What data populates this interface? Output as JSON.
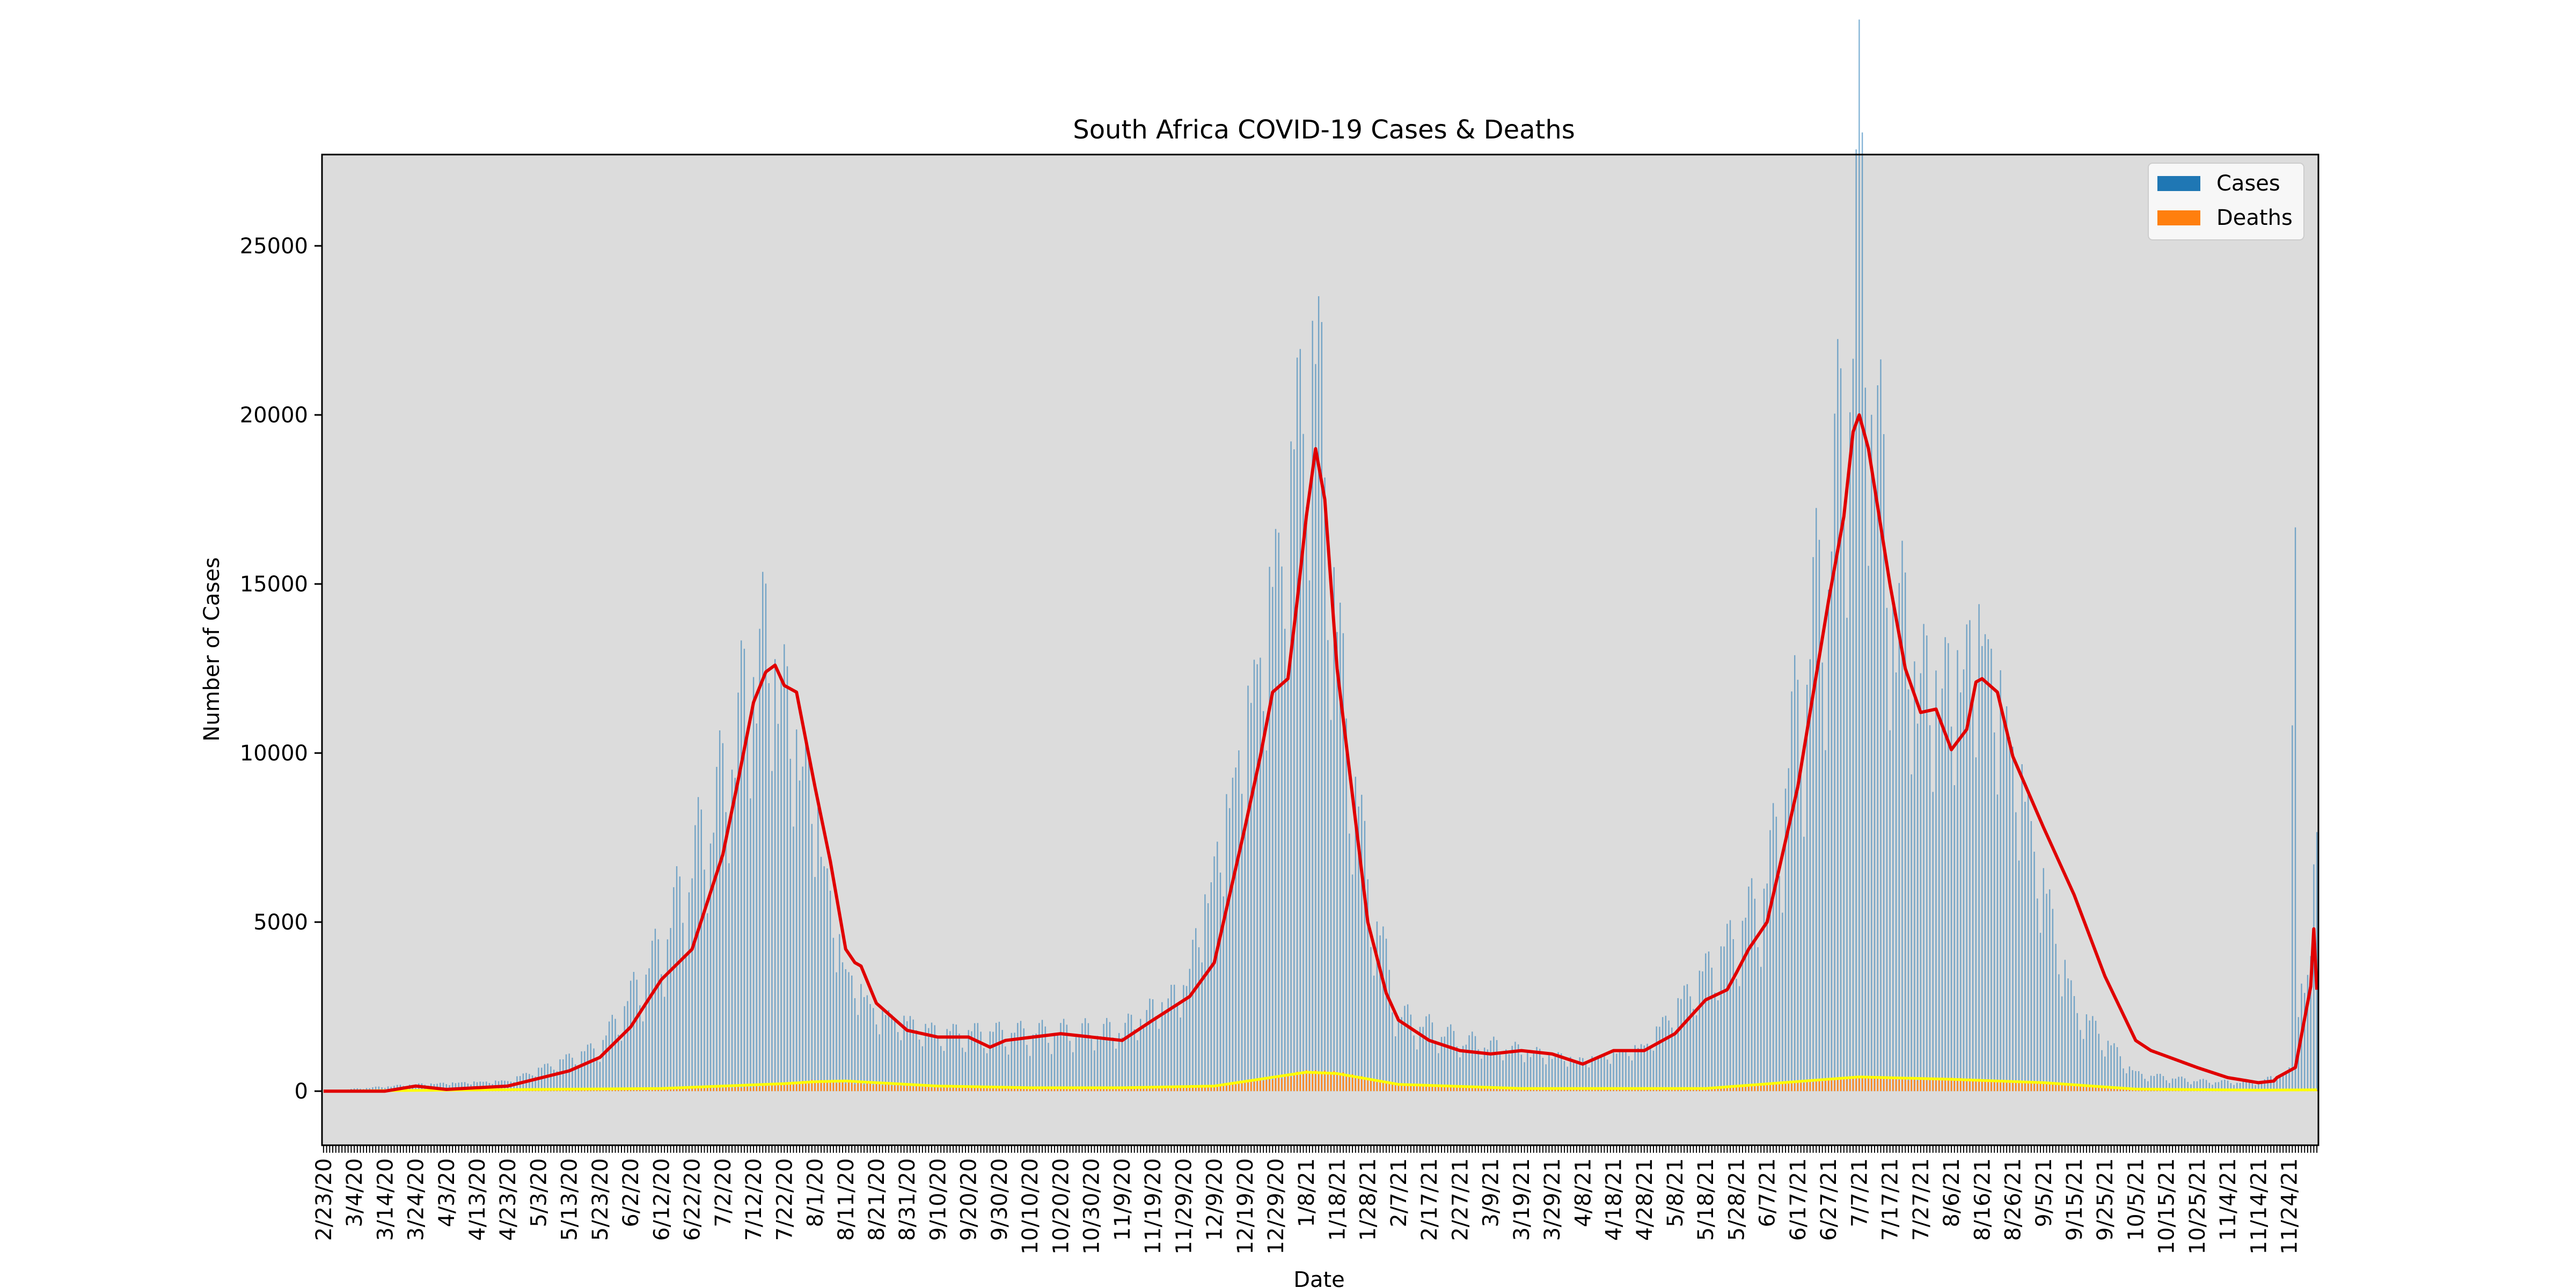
{
  "chart_data": {
    "type": "bar",
    "title": "South Africa COVID-19 Cases & Deaths",
    "xlabel": "Date",
    "ylabel": "Number of Cases",
    "ylim": [
      -1600,
      27700
    ],
    "y_ticks": [
      0,
      5000,
      10000,
      15000,
      20000,
      25000
    ],
    "x_start": "2020-02-23",
    "x_end": "2021-12-03",
    "x_tick_labels": [
      "2/23/20",
      "3/4/20",
      "3/14/20",
      "3/24/20",
      "4/3/20",
      "4/13/20",
      "4/23/20",
      "5/3/20",
      "5/13/20",
      "5/23/20",
      "6/2/20",
      "6/12/20",
      "6/22/20",
      "7/2/20",
      "7/12/20",
      "7/22/20",
      "8/1/20",
      "8/11/20",
      "8/21/20",
      "8/31/20",
      "9/10/20",
      "9/20/20",
      "9/30/20",
      "10/10/20",
      "10/20/20",
      "10/30/20",
      "11/9/20",
      "11/19/20",
      "11/29/20",
      "12/9/20",
      "12/19/20",
      "12/29/20",
      "1/8/21",
      "1/18/21",
      "1/28/21",
      "2/7/21",
      "2/17/21",
      "2/27/21",
      "3/9/21",
      "3/19/21",
      "3/29/21",
      "4/8/21",
      "4/18/21",
      "4/28/21",
      "5/8/21",
      "5/18/21",
      "5/28/21",
      "6/7/21",
      "6/17/21",
      "6/27/21",
      "7/7/21",
      "7/17/21",
      "7/27/21",
      "8/6/21",
      "8/16/21",
      "8/26/21",
      "9/5/21",
      "9/15/21",
      "9/25/21",
      "10/5/21",
      "10/15/21",
      "10/25/21",
      "11/4/21",
      "11/14/21",
      "11/24/21"
    ],
    "legend": {
      "placement": "top-right",
      "entries": [
        "Cases",
        "Deaths"
      ]
    },
    "grid": false,
    "background": "#dcdcdc",
    "colors": {
      "cases": "#1f77b4",
      "deaths": "#ff7f0e",
      "cases_avg": "#e00000",
      "deaths_avg": "#ffff00"
    },
    "series": [
      {
        "name": "Cases",
        "kind": "bar",
        "x": [
          "2020-02-23",
          "2020-03-24",
          "2020-04-23",
          "2020-05-23",
          "2020-06-12",
          "2020-07-02",
          "2020-07-12",
          "2020-07-17",
          "2020-07-22",
          "2020-08-01",
          "2020-08-06",
          "2020-08-11",
          "2020-08-21",
          "2020-09-10",
          "2020-10-10",
          "2020-11-09",
          "2020-11-29",
          "2020-12-09",
          "2020-12-19",
          "2020-12-29",
          "2021-01-03",
          "2021-01-08",
          "2021-01-13",
          "2021-01-18",
          "2021-01-28",
          "2021-02-07",
          "2021-02-27",
          "2021-03-19",
          "2021-04-08",
          "2021-04-28",
          "2021-05-18",
          "2021-05-28",
          "2021-06-07",
          "2021-06-17",
          "2021-06-27",
          "2021-07-02",
          "2021-07-07",
          "2021-07-12",
          "2021-07-17",
          "2021-07-27",
          "2021-08-06",
          "2021-08-16",
          "2021-08-26",
          "2021-09-05",
          "2021-09-15",
          "2021-09-25",
          "2021-10-05",
          "2021-10-25",
          "2021-11-14",
          "2021-11-24",
          "2021-11-26",
          "2021-11-27",
          "2021-12-01",
          "2021-12-03"
        ],
        "values": [
          0,
          200,
          300,
          1300,
          4200,
          9000,
          12500,
          13400,
          11500,
          8500,
          5500,
          3500,
          2300,
          1700,
          1700,
          1800,
          3000,
          6500,
          10500,
          15000,
          17500,
          21500,
          20000,
          13000,
          6000,
          2200,
          1500,
          1200,
          900,
          1300,
          3500,
          4500,
          6000,
          11000,
          16000,
          19500,
          26000,
          20000,
          15000,
          12000,
          12000,
          13500,
          10000,
          6000,
          2500,
          1500,
          500,
          300,
          250,
          600,
          18500,
          3000,
          3500,
          8500
        ]
      },
      {
        "name": "Deaths",
        "kind": "bar",
        "x": [
          "2020-02-23",
          "2020-06-12",
          "2020-07-12",
          "2020-08-01",
          "2020-09-10",
          "2020-12-09",
          "2021-01-08",
          "2021-01-18",
          "2021-02-07",
          "2021-03-19",
          "2021-05-18",
          "2021-07-07",
          "2021-08-06",
          "2021-09-05",
          "2021-10-05",
          "2021-11-14",
          "2021-12-03"
        ],
        "values": [
          0,
          60,
          120,
          300,
          100,
          120,
          550,
          520,
          200,
          80,
          80,
          400,
          350,
          250,
          50,
          30,
          30
        ]
      },
      {
        "name": "",
        "kind": "line",
        "x": [
          "2020-02-23",
          "2020-03-14",
          "2020-03-24",
          "2020-04-03",
          "2020-04-23",
          "2020-05-13",
          "2020-05-23",
          "2020-06-02",
          "2020-06-12",
          "2020-06-22",
          "2020-07-02",
          "2020-07-07",
          "2020-07-12",
          "2020-07-16",
          "2020-07-19",
          "2020-07-22",
          "2020-07-26",
          "2020-08-01",
          "2020-08-06",
          "2020-08-11",
          "2020-08-14",
          "2020-08-16",
          "2020-08-21",
          "2020-08-31",
          "2020-09-10",
          "2020-09-20",
          "2020-09-27",
          "2020-10-02",
          "2020-10-20",
          "2020-11-09",
          "2020-11-19",
          "2020-12-01",
          "2020-12-09",
          "2020-12-19",
          "2020-12-24",
          "2020-12-28",
          "2021-01-02",
          "2021-01-05",
          "2021-01-08",
          "2021-01-11",
          "2021-01-14",
          "2021-01-18",
          "2021-01-24",
          "2021-01-28",
          "2021-02-03",
          "2021-02-07",
          "2021-02-17",
          "2021-02-27",
          "2021-03-09",
          "2021-03-19",
          "2021-03-29",
          "2021-04-08",
          "2021-04-18",
          "2021-04-28",
          "2021-05-08",
          "2021-05-18",
          "2021-05-25",
          "2021-05-28",
          "2021-06-01",
          "2021-06-07",
          "2021-06-17",
          "2021-06-27",
          "2021-07-02",
          "2021-07-05",
          "2021-07-07",
          "2021-07-10",
          "2021-07-17",
          "2021-07-22",
          "2021-07-27",
          "2021-08-01",
          "2021-08-06",
          "2021-08-11",
          "2021-08-14",
          "2021-08-16",
          "2021-08-21",
          "2021-08-26",
          "2021-09-05",
          "2021-09-15",
          "2021-09-25",
          "2021-10-05",
          "2021-10-10",
          "2021-10-25",
          "2021-11-04",
          "2021-11-14",
          "2021-11-19",
          "2021-11-20",
          "2021-11-26",
          "2021-12-01",
          "2021-12-02",
          "2021-12-03"
        ],
        "values": [
          0,
          0,
          150,
          50,
          150,
          600,
          1000,
          1900,
          3300,
          4200,
          7000,
          9200,
          11500,
          12400,
          12600,
          12000,
          11800,
          9000,
          6800,
          4200,
          3800,
          3700,
          2600,
          1800,
          1600,
          1600,
          1300,
          1500,
          1700,
          1500,
          2100,
          2800,
          3800,
          7800,
          9900,
          11800,
          12200,
          14500,
          17000,
          19000,
          17500,
          12500,
          8000,
          5000,
          2900,
          2100,
          1500,
          1200,
          1100,
          1200,
          1100,
          800,
          1200,
          1200,
          1700,
          2700,
          3000,
          3500,
          4200,
          5000,
          9000,
          14500,
          17000,
          19500,
          20000,
          19000,
          15000,
          12500,
          11200,
          11300,
          10100,
          10700,
          12100,
          12200,
          11800,
          9900,
          7800,
          5800,
          3400,
          1500,
          1200,
          700,
          400,
          250,
          300,
          400,
          700,
          3100,
          4800,
          3000
        ]
      },
      {
        "name": "",
        "kind": "line",
        "x": [
          "2020-02-23",
          "2020-06-12",
          "2020-07-22",
          "2020-08-01",
          "2020-08-11",
          "2020-09-10",
          "2020-10-10",
          "2020-11-09",
          "2020-12-09",
          "2021-01-08",
          "2021-01-18",
          "2021-02-07",
          "2021-03-19",
          "2021-05-18",
          "2021-07-07",
          "2021-08-06",
          "2021-09-05",
          "2021-10-05",
          "2021-11-14",
          "2021-12-03"
        ],
        "values": [
          0,
          80,
          220,
          280,
          300,
          150,
          100,
          100,
          150,
          560,
          520,
          200,
          80,
          80,
          420,
          350,
          250,
          60,
          30,
          40
        ]
      }
    ]
  }
}
